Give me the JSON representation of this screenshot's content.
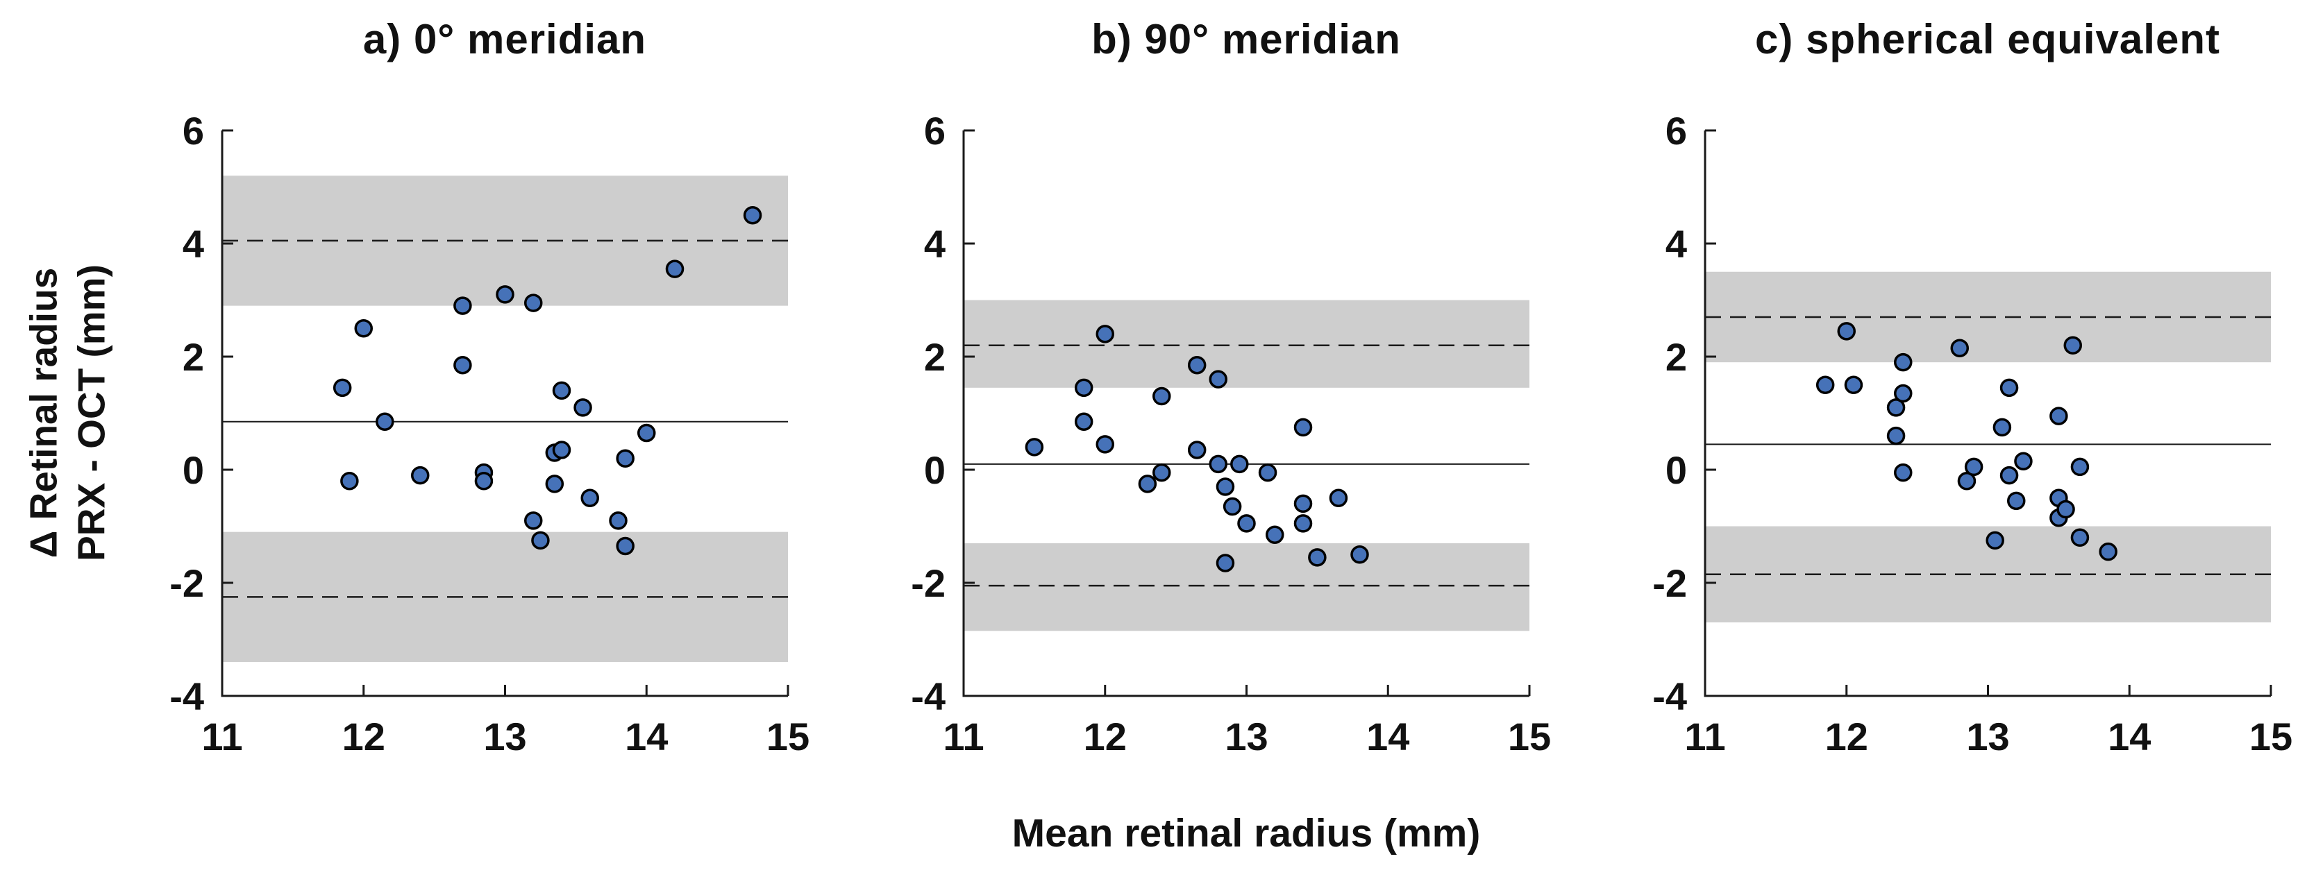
{
  "figure": {
    "x_axis_label": "Mean retinal radius (mm)",
    "y_axis_label_line1": "Δ Retinal radius",
    "y_axis_label_line2": "PRX - OCT (mm)"
  },
  "colors": {
    "marker_fill": "#4672b8",
    "marker_edge": "#000000",
    "band": "#cecece",
    "stat_line": "#1a1a1a",
    "axis": "#1a1a1a",
    "text": "#111111"
  },
  "chart_data": [
    {
      "type": "scatter",
      "panel": "a",
      "title": "a) 0° meridian",
      "xlabel": "Mean retinal radius (mm)",
      "ylabel": "Δ Retinal radius PRX - OCT (mm)",
      "xlim": [
        11,
        15
      ],
      "ylim": [
        -4,
        6
      ],
      "x_ticks": [
        11,
        12,
        13,
        14,
        15
      ],
      "y_ticks": [
        -4,
        -2,
        0,
        2,
        4,
        6
      ],
      "mean_line": 0.85,
      "upper_loa_dashed": 4.05,
      "lower_loa_dashed": -2.25,
      "upper_ci_band": [
        2.9,
        5.2
      ],
      "lower_ci_band": [
        -3.4,
        -1.1
      ],
      "points": [
        [
          11.85,
          1.45
        ],
        [
          11.9,
          -0.2
        ],
        [
          12.0,
          2.5
        ],
        [
          12.15,
          0.85
        ],
        [
          12.4,
          -0.1
        ],
        [
          12.7,
          1.85
        ],
        [
          12.7,
          2.9
        ],
        [
          12.85,
          -0.05
        ],
        [
          12.85,
          -0.2
        ],
        [
          13.0,
          3.1
        ],
        [
          13.2,
          2.95
        ],
        [
          13.2,
          -0.9
        ],
        [
          13.25,
          -1.25
        ],
        [
          13.35,
          0.3
        ],
        [
          13.4,
          0.35
        ],
        [
          13.35,
          -0.25
        ],
        [
          13.4,
          1.4
        ],
        [
          13.55,
          1.1
        ],
        [
          13.6,
          -0.5
        ],
        [
          13.8,
          -0.9
        ],
        [
          13.85,
          0.2
        ],
        [
          13.85,
          -1.35
        ],
        [
          14.0,
          0.65
        ],
        [
          14.2,
          3.55
        ],
        [
          14.75,
          4.5
        ]
      ]
    },
    {
      "type": "scatter",
      "panel": "b",
      "title": "b) 90° meridian",
      "xlabel": "Mean retinal radius (mm)",
      "ylabel": "Δ Retinal radius PRX - OCT (mm)",
      "xlim": [
        11,
        15
      ],
      "ylim": [
        -4,
        6
      ],
      "x_ticks": [
        11,
        12,
        13,
        14,
        15
      ],
      "y_ticks": [
        -4,
        -2,
        0,
        2,
        4,
        6
      ],
      "mean_line": 0.1,
      "upper_loa_dashed": 2.2,
      "lower_loa_dashed": -2.05,
      "upper_ci_band": [
        1.45,
        3.0
      ],
      "lower_ci_band": [
        -2.85,
        -1.3
      ],
      "points": [
        [
          11.5,
          0.4
        ],
        [
          11.85,
          1.45
        ],
        [
          11.85,
          0.85
        ],
        [
          12.0,
          2.4
        ],
        [
          12.0,
          0.45
        ],
        [
          12.3,
          -0.25
        ],
        [
          12.4,
          1.3
        ],
        [
          12.4,
          -0.05
        ],
        [
          12.65,
          1.85
        ],
        [
          12.65,
          0.35
        ],
        [
          12.8,
          1.6
        ],
        [
          12.8,
          0.1
        ],
        [
          12.85,
          -0.3
        ],
        [
          12.9,
          -0.65
        ],
        [
          12.85,
          -1.65
        ],
        [
          12.95,
          0.1
        ],
        [
          13.0,
          -0.95
        ],
        [
          13.15,
          -0.05
        ],
        [
          13.2,
          -1.15
        ],
        [
          13.4,
          0.75
        ],
        [
          13.4,
          -0.6
        ],
        [
          13.4,
          -0.95
        ],
        [
          13.5,
          -1.55
        ],
        [
          13.65,
          -0.5
        ],
        [
          13.8,
          -1.5
        ]
      ]
    },
    {
      "type": "scatter",
      "panel": "c",
      "title": "c) spherical equivalent",
      "xlabel": "Mean retinal radius (mm)",
      "ylabel": "Δ Retinal radius PRX - OCT (mm)",
      "xlim": [
        11,
        15
      ],
      "ylim": [
        -4,
        6
      ],
      "x_ticks": [
        11,
        12,
        13,
        14,
        15
      ],
      "y_ticks": [
        -4,
        -2,
        0,
        2,
        4,
        6
      ],
      "mean_line": 0.45,
      "upper_loa_dashed": 2.7,
      "lower_loa_dashed": -1.85,
      "upper_ci_band": [
        1.9,
        3.5
      ],
      "lower_ci_band": [
        -2.7,
        -1.0
      ],
      "points": [
        [
          11.85,
          1.5
        ],
        [
          12.0,
          2.45
        ],
        [
          12.05,
          1.5
        ],
        [
          12.35,
          1.1
        ],
        [
          12.35,
          0.6
        ],
        [
          12.4,
          1.9
        ],
        [
          12.4,
          1.35
        ],
        [
          12.4,
          -0.05
        ],
        [
          12.8,
          2.15
        ],
        [
          12.85,
          -0.2
        ],
        [
          12.9,
          0.05
        ],
        [
          13.05,
          -1.25
        ],
        [
          13.1,
          0.75
        ],
        [
          13.15,
          1.45
        ],
        [
          13.15,
          -0.1
        ],
        [
          13.2,
          -0.55
        ],
        [
          13.25,
          0.15
        ],
        [
          13.5,
          0.95
        ],
        [
          13.5,
          -0.5
        ],
        [
          13.5,
          -0.85
        ],
        [
          13.55,
          -0.7
        ],
        [
          13.6,
          2.2
        ],
        [
          13.65,
          0.05
        ],
        [
          13.65,
          -1.2
        ],
        [
          13.85,
          -1.45
        ]
      ]
    }
  ]
}
